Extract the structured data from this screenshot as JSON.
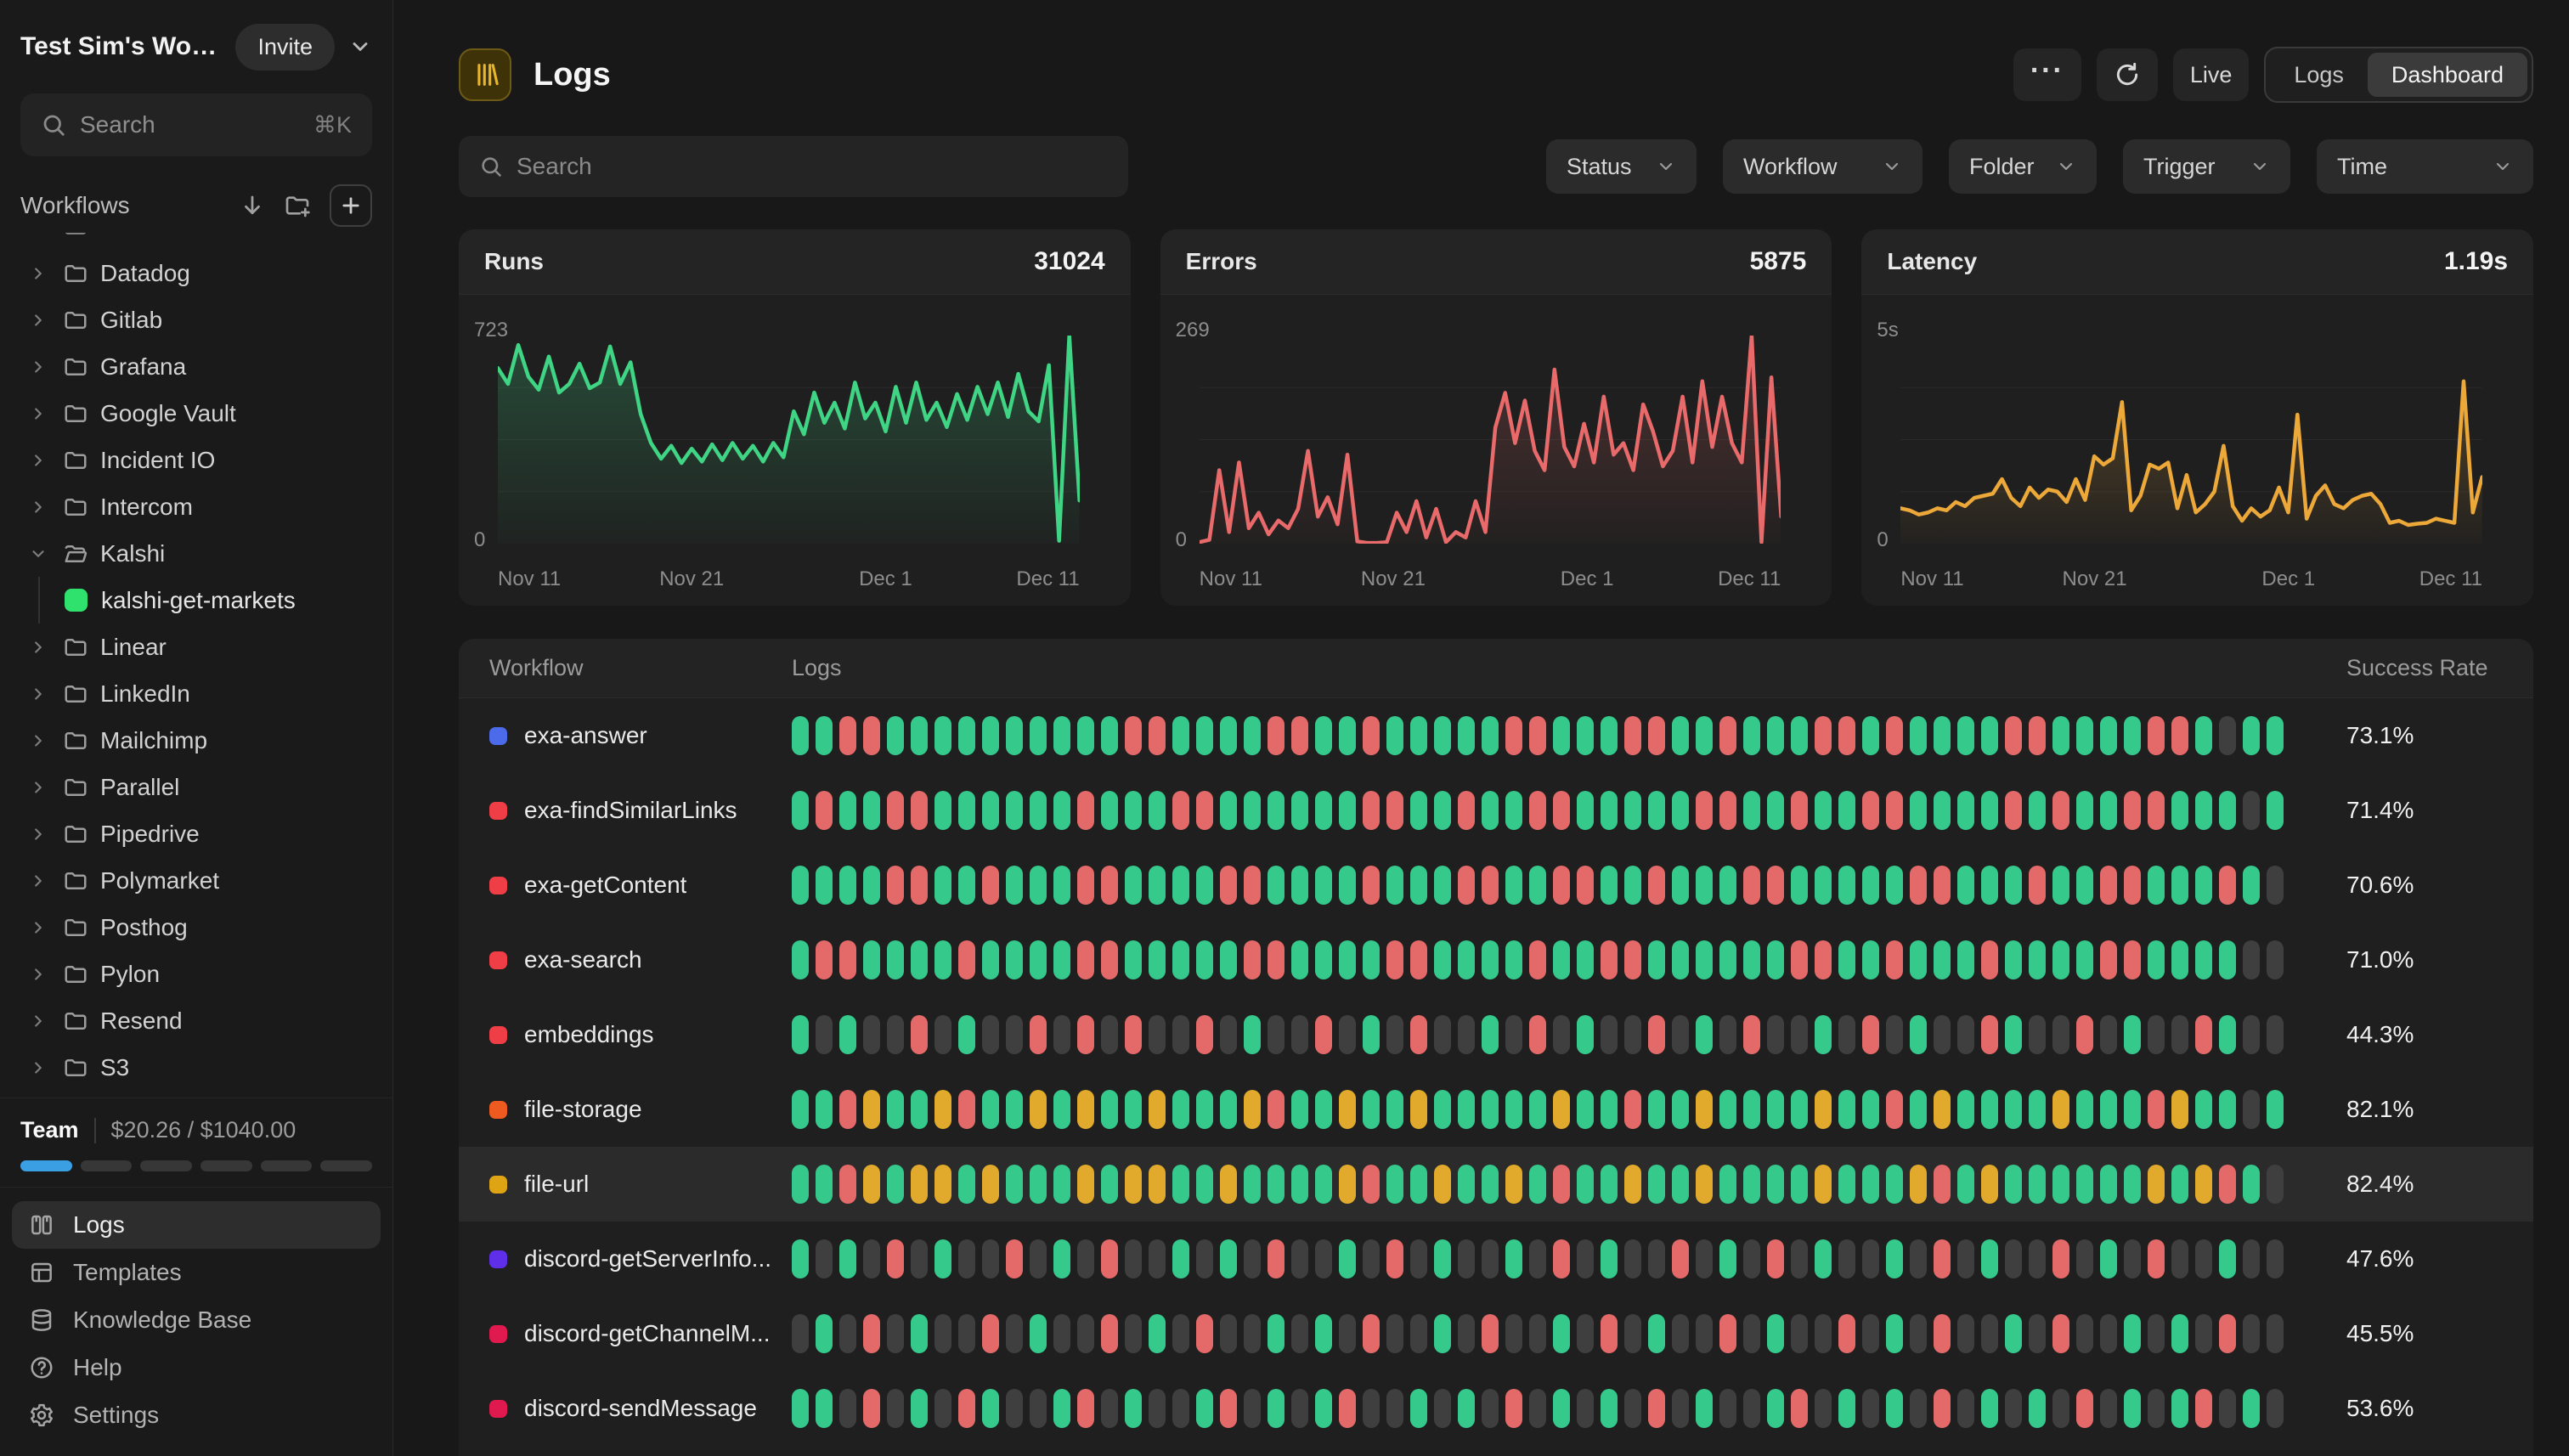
{
  "sidebar": {
    "workspace": {
      "title": "Test Sim's Works...",
      "invite_label": "Invite"
    },
    "search": {
      "placeholder": "Search",
      "shortcut": "⌘K"
    },
    "workflows_label": "Workflows",
    "folders": [
      "Datadog",
      "Gitlab",
      "Grafana",
      "Google Vault",
      "Incident IO",
      "Intercom",
      "Kalshi",
      "Linear",
      "LinkedIn",
      "Mailchimp",
      "Parallel",
      "Pipedrive",
      "Polymarket",
      "Posthog",
      "Pylon",
      "Resend",
      "S3"
    ],
    "expanded_folder": "Kalshi",
    "expanded_child": {
      "name": "kalshi-get-markets",
      "color": "#2fe26e"
    },
    "team": {
      "label": "Team",
      "usage": "$20.26 / $1040.00",
      "segments": 6,
      "filled": 1,
      "fill_color": "#3b9fe3",
      "empty_color": "#373737"
    },
    "nav": [
      {
        "label": "Logs",
        "icon": "logs",
        "active": true
      },
      {
        "label": "Templates",
        "icon": "templates",
        "active": false
      },
      {
        "label": "Knowledge Base",
        "icon": "knowledge",
        "active": false
      },
      {
        "label": "Help",
        "icon": "help",
        "active": false
      },
      {
        "label": "Settings",
        "icon": "settings",
        "active": false
      }
    ]
  },
  "header": {
    "title": "Logs",
    "ellipsis_label": "···",
    "live_label": "Live",
    "tabs": [
      {
        "label": "Logs",
        "active": false
      },
      {
        "label": "Dashboard",
        "active": true
      }
    ]
  },
  "toolbar": {
    "search_placeholder": "Search",
    "filters": [
      "Status",
      "Workflow",
      "Folder",
      "Trigger",
      "Time"
    ],
    "filter_widths": [
      177,
      235,
      174,
      197,
      255
    ]
  },
  "chart_data": [
    {
      "type": "area",
      "title": "Runs",
      "value": "31024",
      "color": "#3fd584",
      "ylim": [
        0,
        723
      ],
      "ymax_label": "723",
      "ymin_label": "0",
      "x_ticks": [
        "Nov 11",
        "Nov 21",
        "Dec 1",
        "Dec 11"
      ],
      "values": [
        610,
        555,
        690,
        580,
        535,
        650,
        525,
        555,
        625,
        540,
        560,
        685,
        555,
        630,
        450,
        350,
        295,
        340,
        280,
        330,
        285,
        345,
        290,
        350,
        295,
        340,
        285,
        350,
        300,
        460,
        380,
        525,
        420,
        490,
        400,
        560,
        435,
        490,
        390,
        545,
        420,
        560,
        430,
        490,
        405,
        520,
        430,
        545,
        450,
        560,
        440,
        590,
        460,
        425,
        620,
        10,
        723,
        150
      ]
    },
    {
      "type": "area",
      "title": "Errors",
      "value": "5875",
      "color": "#e96a6a",
      "ylim": [
        0,
        269
      ],
      "ymax_label": "269",
      "ymin_label": "0",
      "x_ticks": [
        "Nov 11",
        "Nov 21",
        "Dec 1",
        "Dec 11"
      ],
      "values": [
        2,
        5,
        95,
        15,
        105,
        20,
        40,
        12,
        30,
        20,
        45,
        120,
        35,
        60,
        25,
        115,
        3,
        1,
        1,
        2,
        40,
        15,
        55,
        8,
        45,
        2,
        15,
        8,
        55,
        15,
        150,
        195,
        130,
        185,
        120,
        95,
        225,
        125,
        100,
        155,
        105,
        190,
        115,
        130,
        95,
        180,
        145,
        100,
        120,
        190,
        105,
        210,
        125,
        190,
        130,
        105,
        269,
        2,
        215,
        35
      ]
    },
    {
      "type": "area",
      "title": "Latency",
      "value": "1.19s",
      "color": "#eda83a",
      "ylim": [
        0,
        5
      ],
      "ymax_label": "5s",
      "ymin_label": "0",
      "x_ticks": [
        "Nov 11",
        "Nov 21",
        "Dec 1",
        "Dec 11"
      ],
      "values": [
        0.85,
        0.8,
        0.7,
        0.75,
        0.85,
        0.8,
        1.0,
        0.9,
        1.1,
        1.15,
        1.2,
        1.55,
        1.1,
        0.9,
        1.35,
        1.1,
        1.3,
        1.25,
        1.0,
        1.55,
        1.05,
        2.1,
        1.9,
        2.05,
        3.4,
        0.8,
        1.15,
        1.9,
        1.8,
        1.95,
        0.85,
        1.65,
        0.75,
        0.95,
        1.25,
        2.35,
        0.9,
        0.55,
        0.85,
        0.65,
        0.8,
        1.35,
        0.75,
        3.1,
        0.6,
        1.15,
        1.4,
        0.95,
        0.85,
        1.05,
        1.15,
        1.2,
        0.95,
        0.5,
        0.55,
        0.45,
        0.48,
        0.5,
        0.6,
        0.55,
        0.5,
        3.9,
        0.75,
        1.6
      ]
    }
  ],
  "table": {
    "headers": [
      "Workflow",
      "Logs",
      "Success Rate"
    ],
    "pill_colors": {
      "g": "#36c98c",
      "r": "#e46a6a",
      "y": "#e2aa2c",
      "x": "#3f3f3f"
    },
    "rows": [
      {
        "name": "exa-answer",
        "dot": "#4b6bea",
        "success": "73.1%",
        "highlight": false,
        "pattern": "ggrrggggggggggrrggggrrggrgggggrrgggrrggrgggrrgrggggrrggggrrgxgg"
      },
      {
        "name": "exa-findSimilarLinks",
        "dot": "#f03e47",
        "success": "71.4%",
        "highlight": false,
        "pattern": "grggrrggggggrgggrrggggggrrggrggrrgggggrrggrggrrggggrgrggrrgggxg"
      },
      {
        "name": "exa-getContent",
        "dot": "#f03e47",
        "success": "70.6%",
        "highlight": false,
        "pattern": "ggggrrggrgggrrggggrrggggrgggrrggrrggrgggrrgggggrrgggrggrrgggrgx"
      },
      {
        "name": "exa-search",
        "dot": "#f03e47",
        "success": "71.0%",
        "highlight": false,
        "pattern": "grrggggrggggrrgggggrrggggrrggggrggrrggggggrrggrgggrggggrrggggxx"
      },
      {
        "name": "embeddings",
        "dot": "#f03e47",
        "success": "44.3%",
        "highlight": false,
        "pattern": "gxgxxrxgxxrxrxrxxrxgxxrxgxrxxgxrxgxxrxgxrxxgxrxgxxrgxxrxgxxrgxx"
      },
      {
        "name": "file-storage",
        "dot": "#ee5a1f",
        "success": "82.1%",
        "highlight": false,
        "pattern": "ggryggyrggygyggygggyrggyggygggggyggrggyggggyggrgyggggygggryggxg"
      },
      {
        "name": "file-url",
        "dot": "#dfa414",
        "success": "82.4%",
        "highlight": true,
        "pattern": "ggrygyygygggygyyggyggggyrggyggygrggyggyggggygggyrgyggggggygyrgx"
      },
      {
        "name": "discord-getServerInfo...",
        "dot": "#5f2ee8",
        "success": "47.6%",
        "highlight": false,
        "pattern": "gxgxrxgxxrxgxrxxgxgxrxxgxrxgxxgxrxgxxrxgxrxgxxgxrxgxxrxgxrxxgxx"
      },
      {
        "name": "discord-getChannelM...",
        "dot": "#e01a4e",
        "success": "45.5%",
        "highlight": false,
        "pattern": "xgxrxgxxrxgxxrxgxrxxgxgxrxxgxrxxgxrxgxxrxgxxrxgxrxxgxrxxgxgxrxx"
      },
      {
        "name": "discord-sendMessage",
        "dot": "#e01a4e",
        "success": "53.6%",
        "highlight": false,
        "pattern": "ggxrxgxrgxxgrxgxxgrxgxgrxxgxgxrxgxgxrxgxxgrxgxgxrxgxgxrxgxgrxgx"
      }
    ]
  }
}
